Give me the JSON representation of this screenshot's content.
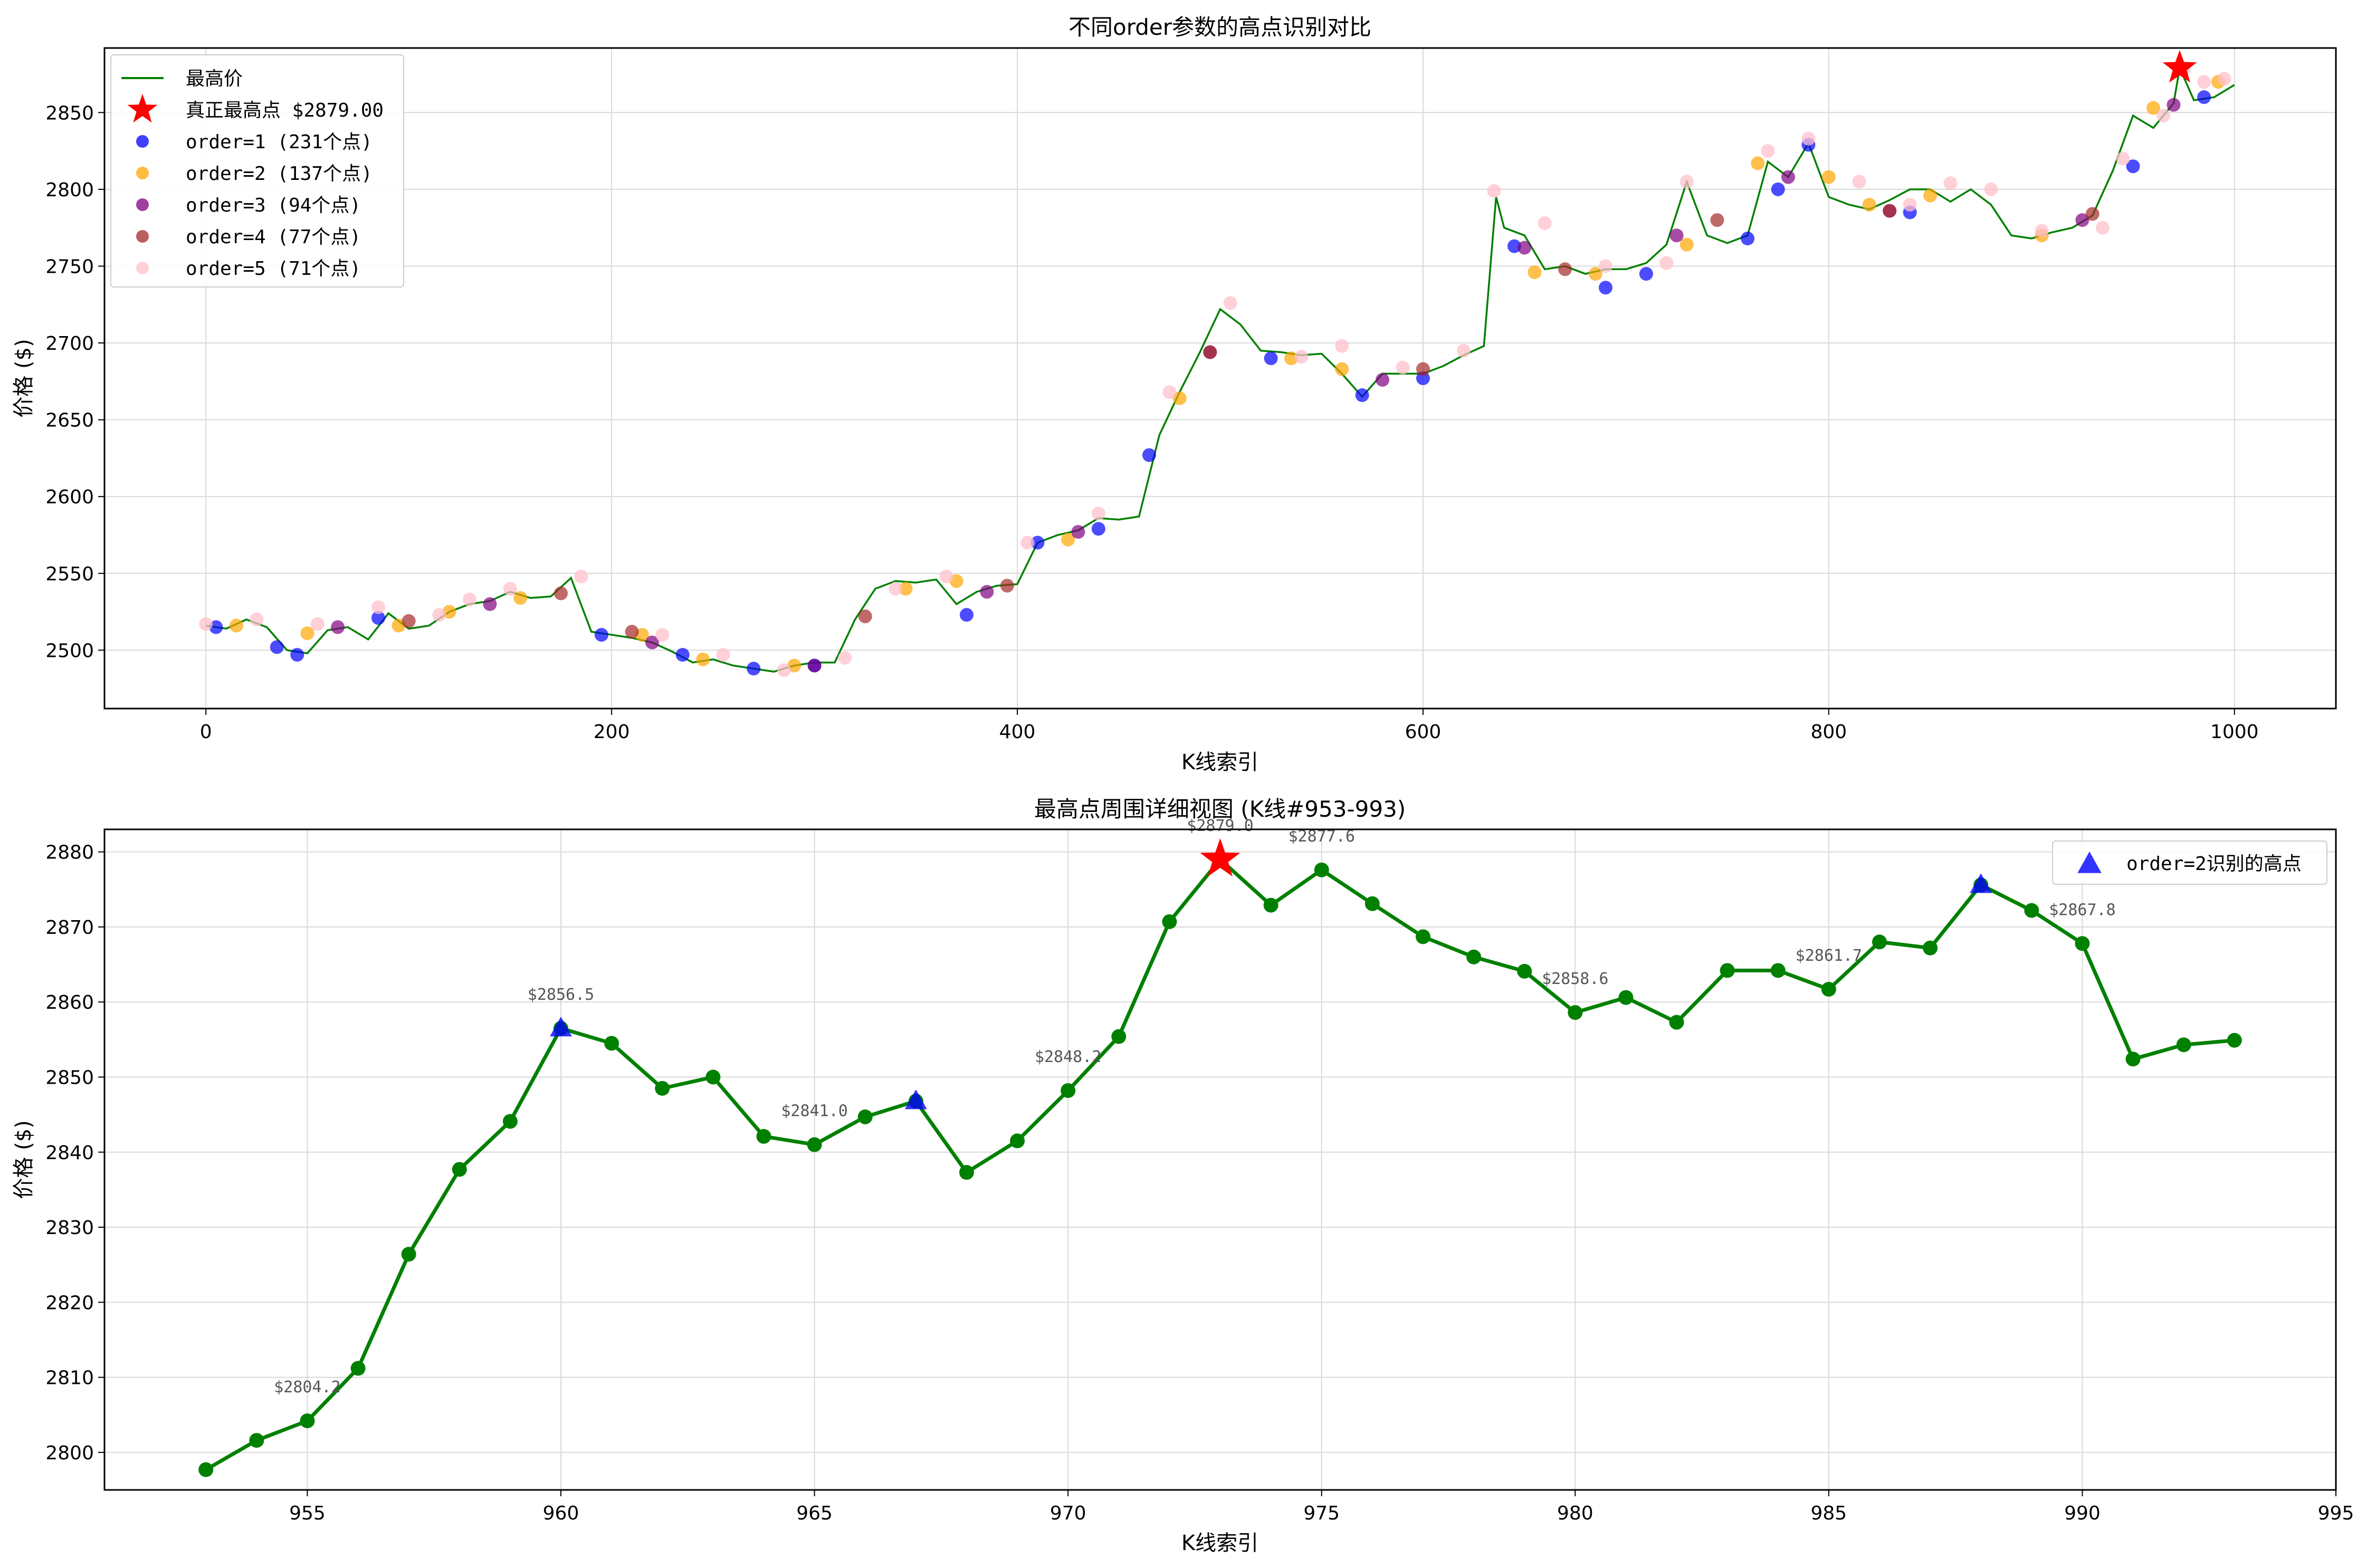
{
  "figure": {
    "background": "#ffffff"
  },
  "chart_data": [
    {
      "type": "line",
      "title": "不同order参数的高点识别对比",
      "xlabel": "K线索引",
      "ylabel": "价格 ($)",
      "xlim": [
        -50,
        1050
      ],
      "ylim": [
        2462,
        2892
      ],
      "xticks": [
        0,
        200,
        400,
        600,
        800,
        1000
      ],
      "yticks": [
        2500,
        2550,
        2600,
        2650,
        2700,
        2750,
        2800,
        2850
      ],
      "grid": true,
      "legend_position": "top-left",
      "colors": {
        "line": "#008000",
        "order1": "#0000ff",
        "order2": "#ffa500",
        "order3": "#800080",
        "order4": "#a52a2a",
        "order5": "#ffc0cb",
        "star": "#ff0000"
      },
      "legend": [
        {
          "label": "最高价",
          "kind": "line",
          "color": "#008000"
        },
        {
          "label": "真正最高点 $2879.00",
          "kind": "star",
          "color": "#ff0000"
        },
        {
          "label": "order=1 (231个点)",
          "kind": "dot",
          "color": "#0000ff"
        },
        {
          "label": "order=2 (137个点)",
          "kind": "dot",
          "color": "#ffa500"
        },
        {
          "label": "order=3 (94个点)",
          "kind": "dot",
          "color": "#800080"
        },
        {
          "label": "order=4 (77个点)",
          "kind": "dot",
          "color": "#a52a2a"
        },
        {
          "label": "order=5 (71个点)",
          "kind": "dot",
          "color": "#ffc0cb"
        }
      ],
      "series": [
        {
          "name": "最高价",
          "x": [
            0,
            10,
            20,
            30,
            40,
            50,
            60,
            70,
            80,
            90,
            100,
            110,
            120,
            130,
            140,
            150,
            160,
            170,
            180,
            190,
            200,
            210,
            220,
            230,
            240,
            250,
            260,
            270,
            280,
            290,
            300,
            310,
            320,
            330,
            340,
            350,
            360,
            370,
            380,
            390,
            400,
            410,
            420,
            430,
            440,
            450,
            460,
            470,
            480,
            490,
            500,
            510,
            520,
            530,
            540,
            550,
            560,
            570,
            580,
            590,
            600,
            610,
            620,
            630,
            636,
            640,
            650,
            660,
            670,
            680,
            690,
            700,
            710,
            720,
            730,
            740,
            750,
            760,
            770,
            780,
            790,
            800,
            810,
            820,
            830,
            840,
            850,
            860,
            870,
            880,
            890,
            900,
            910,
            920,
            930,
            940,
            950,
            960,
            970,
            973,
            980,
            990,
            1000
          ],
          "y": [
            2516,
            2514,
            2520,
            2515,
            2500,
            2498,
            2513,
            2515,
            2507,
            2524,
            2514,
            2516,
            2525,
            2530,
            2532,
            2538,
            2534,
            2535,
            2547,
            2512,
            2510,
            2508,
            2505,
            2499,
            2492,
            2494,
            2490,
            2488,
            2486,
            2490,
            2492,
            2492,
            2520,
            2540,
            2545,
            2544,
            2546,
            2530,
            2538,
            2542,
            2543,
            2570,
            2575,
            2578,
            2586,
            2585,
            2587,
            2640,
            2668,
            2694,
            2722,
            2712,
            2695,
            2694,
            2692,
            2693,
            2680,
            2665,
            2680,
            2680,
            2680,
            2685,
            2692,
            2698,
            2795,
            2775,
            2770,
            2748,
            2750,
            2745,
            2748,
            2748,
            2752,
            2764,
            2805,
            2770,
            2765,
            2770,
            2818,
            2808,
            2830,
            2795,
            2790,
            2787,
            2793,
            2800,
            2800,
            2792,
            2800,
            2790,
            2770,
            2768,
            2772,
            2775,
            2783,
            2812,
            2848,
            2840,
            2856,
            2879,
            2858,
            2860,
            2868
          ]
        },
        {
          "name": "order=1 (231个点)",
          "x": [
            5,
            35,
            45,
            85,
            195,
            235,
            270,
            300,
            375,
            410,
            440,
            465,
            525,
            570,
            600,
            645,
            690,
            710,
            760,
            775,
            790,
            840,
            950,
            985
          ],
          "y": [
            2515,
            2502,
            2497,
            2521,
            2510,
            2497,
            2488,
            2490,
            2523,
            2570,
            2579,
            2627,
            2690,
            2666,
            2677,
            2763,
            2736,
            2745,
            2768,
            2800,
            2829,
            2785,
            2815,
            2860
          ]
        },
        {
          "name": "order=2 (137个点)",
          "x": [
            15,
            50,
            95,
            120,
            155,
            215,
            245,
            290,
            345,
            370,
            425,
            480,
            535,
            560,
            655,
            685,
            730,
            765,
            800,
            820,
            850,
            905,
            960,
            992
          ],
          "y": [
            2516,
            2511,
            2516,
            2525,
            2534,
            2510,
            2494,
            2490,
            2540,
            2545,
            2572,
            2664,
            2690,
            2683,
            2746,
            2745,
            2764,
            2817,
            2808,
            2790,
            2796,
            2770,
            2853,
            2870
          ]
        },
        {
          "name": "order=3 (94个点)",
          "x": [
            65,
            140,
            220,
            300,
            385,
            430,
            495,
            580,
            650,
            725,
            780,
            830,
            925,
            970
          ],
          "y": [
            2515,
            2530,
            2505,
            2490,
            2538,
            2577,
            2694,
            2676,
            2762,
            2770,
            2808,
            2786,
            2780,
            2855
          ]
        },
        {
          "name": "order=4 (77个点)",
          "x": [
            100,
            175,
            210,
            325,
            395,
            495,
            600,
            670,
            745,
            830,
            930
          ],
          "y": [
            2519,
            2537,
            2512,
            2522,
            2542,
            2694,
            2683,
            2748,
            2780,
            2786,
            2784
          ]
        },
        {
          "name": "order=5 (71个点)",
          "x": [
            0,
            25,
            55,
            85,
            115,
            130,
            150,
            185,
            225,
            255,
            285,
            315,
            340,
            365,
            405,
            440,
            475,
            505,
            540,
            560,
            590,
            620,
            635,
            660,
            690,
            720,
            730,
            770,
            790,
            815,
            840,
            860,
            880,
            905,
            935,
            945,
            965,
            975,
            985,
            995
          ],
          "y": [
            2517,
            2520,
            2517,
            2528,
            2523,
            2533,
            2540,
            2548,
            2510,
            2497,
            2487,
            2495,
            2540,
            2548,
            2570,
            2589,
            2668,
            2726,
            2691,
            2698,
            2684,
            2695,
            2799,
            2778,
            2750,
            2752,
            2805,
            2825,
            2833,
            2805,
            2790,
            2804,
            2800,
            2773,
            2775,
            2820,
            2848,
            2878,
            2870,
            2872
          ]
        },
        {
          "name": "真正最高点 $2879.00",
          "x": [
            973
          ],
          "y": [
            2879
          ]
        }
      ]
    },
    {
      "type": "line",
      "title": "最高点周围详细视图 (K线#953-993)",
      "xlabel": "K线索引",
      "ylabel": "价格 ($)",
      "xlim": [
        951,
        995
      ],
      "ylim": [
        2795,
        2883
      ],
      "xticks": [
        955,
        960,
        965,
        970,
        975,
        980,
        985,
        990,
        995
      ],
      "yticks": [
        2800,
        2810,
        2820,
        2830,
        2840,
        2850,
        2860,
        2870,
        2880
      ],
      "grid": true,
      "legend_position": "top-right",
      "colors": {
        "line": "#008000",
        "triangle": "#0000ff",
        "star": "#ff0000",
        "annotation": "#555555"
      },
      "legend": [
        {
          "label": "order=2识别的高点",
          "kind": "triangle",
          "color": "#0000ff"
        }
      ],
      "series": [
        {
          "name": "",
          "x": [
            953,
            954,
            955,
            956,
            957,
            958,
            959,
            960,
            961,
            962,
            963,
            964,
            965,
            966,
            967,
            968,
            969,
            970,
            971,
            972,
            973,
            974,
            975,
            976,
            977,
            978,
            979,
            980,
            981,
            982,
            983,
            984,
            985,
            986,
            987,
            988,
            989,
            990,
            991,
            992,
            993
          ],
          "y": [
            2797.7,
            2801.6,
            2804.2,
            2811.2,
            2826.4,
            2837.7,
            2844.1,
            2856.5,
            2854.5,
            2848.5,
            2850.0,
            2842.1,
            2841.0,
            2844.7,
            2846.8,
            2837.3,
            2841.5,
            2848.2,
            2855.4,
            2870.7,
            2879.0,
            2872.9,
            2877.6,
            2873.1,
            2868.7,
            2866.0,
            2864.1,
            2858.6,
            2860.6,
            2857.3,
            2864.2,
            2864.2,
            2861.7,
            2868.0,
            2867.2,
            2875.6,
            2872.2,
            2867.8,
            2852.4,
            2854.3,
            2854.9
          ]
        },
        {
          "name": "order=2识别的高点",
          "x": [
            960,
            967,
            988
          ],
          "y": [
            2856.5,
            2846.8,
            2875.6
          ]
        },
        {
          "name": "",
          "x": [
            973
          ],
          "y": [
            2879.0
          ]
        }
      ],
      "annotations": [
        {
          "x": 955,
          "y": 2804.2,
          "text": "$2804.2"
        },
        {
          "x": 960,
          "y": 2856.5,
          "text": "$2856.5"
        },
        {
          "x": 965,
          "y": 2841.0,
          "text": "$2841.0"
        },
        {
          "x": 970,
          "y": 2848.2,
          "text": "$2848.2"
        },
        {
          "x": 973,
          "y": 2879.0,
          "text": "$2879.0"
        },
        {
          "x": 975,
          "y": 2877.6,
          "text": "$2877.6"
        },
        {
          "x": 980,
          "y": 2858.6,
          "text": "$2858.6"
        },
        {
          "x": 985,
          "y": 2861.7,
          "text": "$2861.7"
        },
        {
          "x": 990,
          "y": 2867.8,
          "text": "$2867.8"
        }
      ]
    }
  ]
}
